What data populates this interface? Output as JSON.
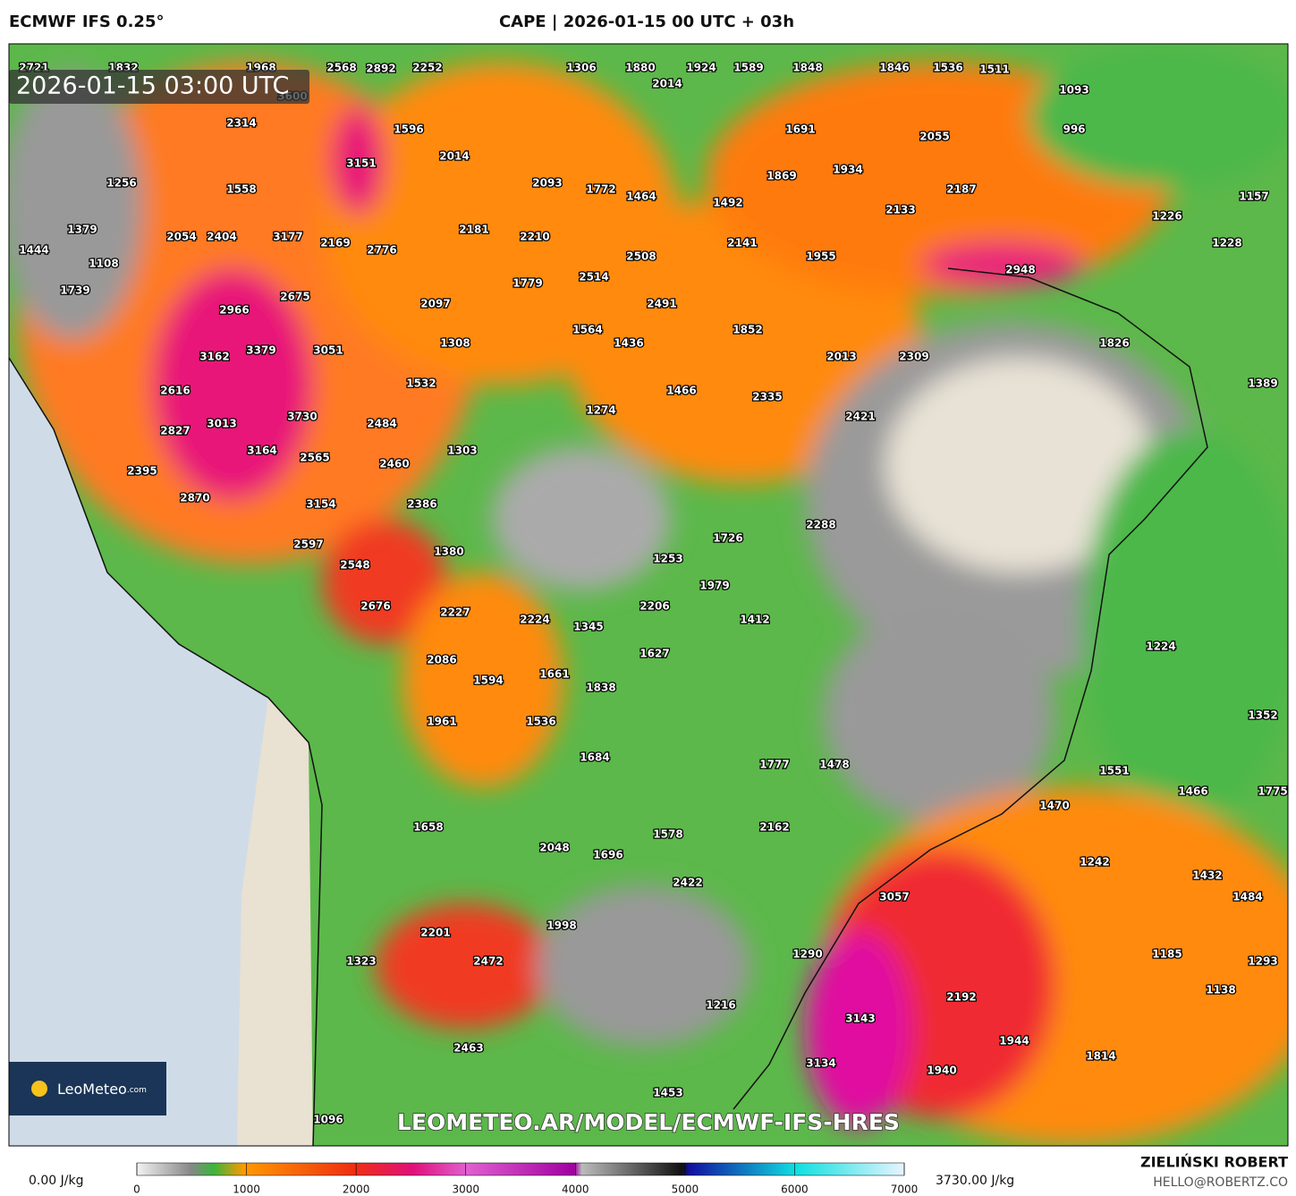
{
  "header": {
    "model": "ECMWF IFS 0.25°",
    "title": "CAPE | 2026-01-15 00 UTC + 03h"
  },
  "map": {
    "timestamp": "2026-01-15 03:00 UTC",
    "watermark": "LEOMETEO.AR/MODEL/ECMWF-IFS-HRES",
    "logo": "LeoMeteo",
    "logo_suffix": ".com",
    "values": [
      2721,
      1832,
      1968,
      2568,
      2892,
      2252,
      1306,
      1880,
      1924,
      1589,
      1848,
      1846,
      1536,
      1511,
      2014,
      3600,
      1093,
      2314,
      1596,
      1691,
      996,
      2055,
      3151,
      2014,
      1869,
      1934,
      1256,
      1558,
      2093,
      1772,
      1464,
      1492,
      2187,
      1157,
      2133,
      1226,
      1379,
      2054,
      2404,
      3177,
      2169,
      2776,
      2181,
      2210,
      2141,
      1955,
      1228,
      1444,
      1108,
      2508,
      2948,
      1739,
      2675,
      1779,
      2514,
      2097,
      2491,
      2966,
      1564,
      1852,
      3379,
      3051,
      1308,
      1436,
      1826,
      3162,
      2013,
      2309,
      1532,
      1389,
      2616,
      1466,
      2335,
      3730,
      2484,
      1274,
      2421,
      2827,
      3013,
      3164,
      2565,
      2460,
      1303,
      2395,
      2870,
      3154,
      2386,
      2288,
      2597,
      1726,
      1380,
      2548,
      1253,
      1979,
      2676,
      2206,
      2227,
      2224,
      1345,
      1412,
      1224,
      1627,
      2086,
      1661,
      1594,
      1838,
      1961,
      1536,
      1352,
      1684,
      1777,
      1478,
      1551,
      1466,
      1775,
      1470,
      1658,
      1578,
      2162,
      2048,
      1696,
      1242,
      2422,
      1432,
      3057,
      1484,
      1998,
      2201,
      1290,
      1185,
      1293,
      1323,
      2472,
      1138,
      2192,
      1216,
      3143,
      1944,
      2463,
      1814,
      3134,
      1940,
      1453,
      1096
    ]
  },
  "colorbar": {
    "min_label": "0.00 J/kg",
    "max_label": "3730.00 J/kg",
    "lim": [
      0,
      7000
    ],
    "ticks": [
      0,
      1000,
      2000,
      3000,
      4000,
      5000,
      6000,
      7000
    ]
  },
  "footer": {
    "author": "ZIELIŃSKI ROBERT",
    "email": "HELLO@ROBERTZ.CO"
  }
}
